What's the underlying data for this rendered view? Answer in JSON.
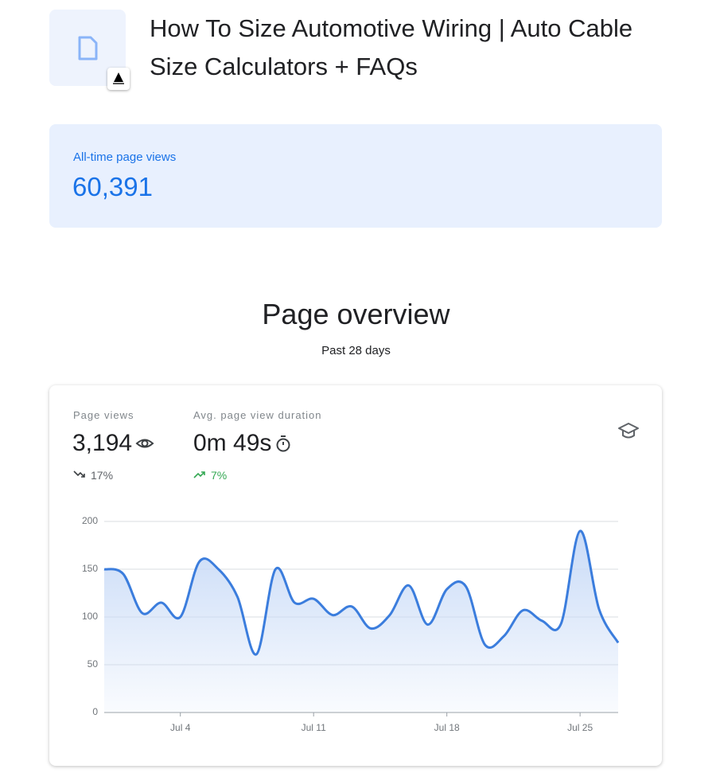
{
  "header": {
    "title": "How To Size Automotive Wiring | Auto Cable Size Calculators + FAQs"
  },
  "all_time": {
    "label": "All-time page views",
    "value": "60,391"
  },
  "overview": {
    "title": "Page overview",
    "subtitle": "Past 28 days"
  },
  "metrics": [
    {
      "label": "Page views",
      "value": "3,194",
      "change": "17%",
      "trend": "down"
    },
    {
      "label": "Avg. page view duration",
      "value": "0m 49s",
      "change": "7%",
      "trend": "up"
    }
  ],
  "chart_data": {
    "type": "line",
    "categories": [
      null,
      null,
      null,
      null,
      "Jul 4",
      null,
      null,
      null,
      null,
      null,
      null,
      "Jul 11",
      null,
      null,
      null,
      null,
      null,
      null,
      "Jul 18",
      null,
      null,
      null,
      null,
      null,
      null,
      "Jul 25",
      null,
      null
    ],
    "series": [
      {
        "name": "Page views",
        "color": "#3b7ddd",
        "values": [
          150,
          145,
          104,
          115,
          100,
          158,
          150,
          121,
          61,
          150,
          115,
          119,
          102,
          111,
          88,
          102,
          133,
          92,
          129,
          132,
          71,
          80,
          107,
          96,
          93,
          190,
          108,
          73
        ]
      }
    ],
    "ylim": [
      0,
      200
    ],
    "yticks": [
      0,
      50,
      100,
      150,
      200
    ],
    "grid": true
  }
}
